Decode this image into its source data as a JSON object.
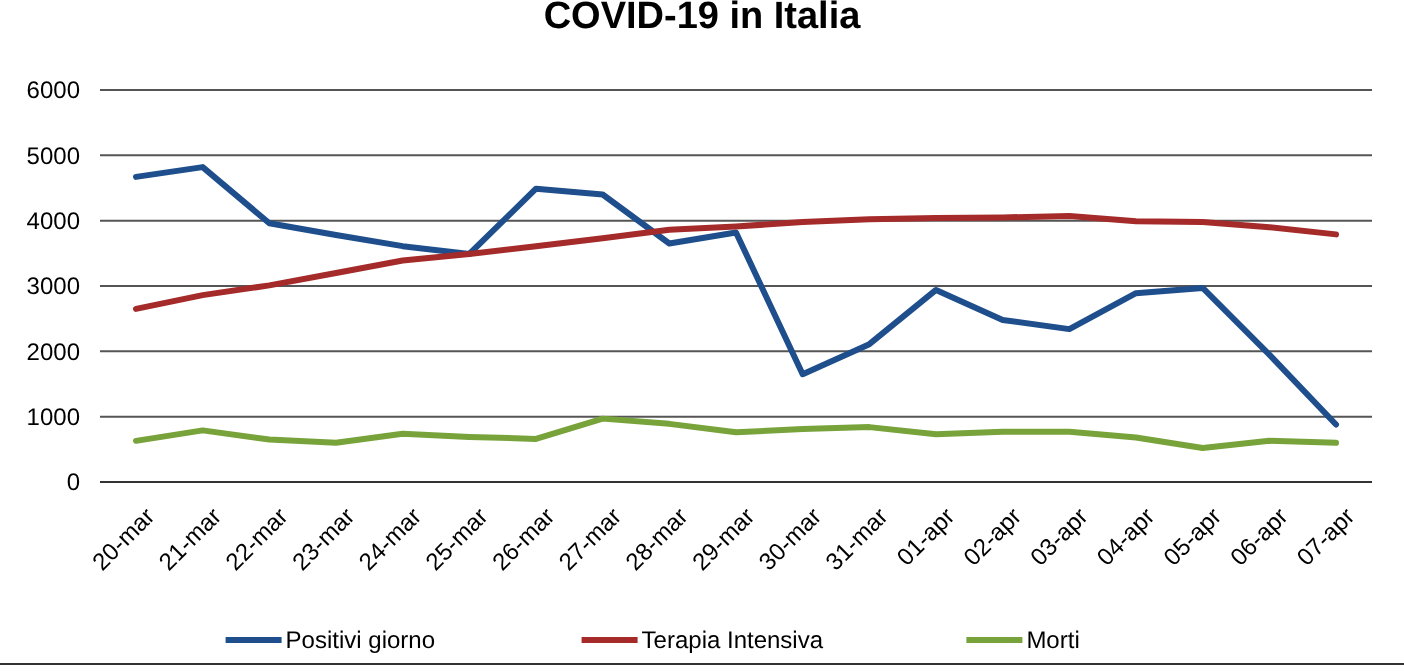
{
  "chart_data": {
    "type": "line",
    "title": "COVID-19 in Italia",
    "categories": [
      "20-mar",
      "21-mar",
      "22-mar",
      "23-mar",
      "24-mar",
      "25-mar",
      "26-mar",
      "27-mar",
      "28-mar",
      "29-mar",
      "30-mar",
      "31-mar",
      "01-apr",
      "02-apr",
      "03-apr",
      "04-apr",
      "05-apr",
      "06-apr",
      "07-apr"
    ],
    "series": [
      {
        "name": "Positivi giorno",
        "color": "#1f4e8c",
        "values": [
          4670,
          4820,
          3960,
          3780,
          3610,
          3490,
          4490,
          4400,
          3650,
          3820,
          1650,
          2110,
          2940,
          2480,
          2340,
          2890,
          2970,
          1950,
          880
        ]
      },
      {
        "name": "Terapia Intensiva",
        "color": "#a52a2a",
        "values": [
          2650,
          2860,
          3010,
          3200,
          3390,
          3490,
          3610,
          3730,
          3860,
          3910,
          3980,
          4020,
          4040,
          4050,
          4070,
          3990,
          3980,
          3900,
          3790
        ]
      },
      {
        "name": "Morti",
        "color": "#77a33a",
        "values": [
          630,
          790,
          650,
          600,
          740,
          690,
          660,
          970,
          890,
          760,
          810,
          840,
          730,
          770,
          770,
          680,
          520,
          630,
          600
        ]
      }
    ],
    "ylim": [
      0,
      6000
    ],
    "yticks": [
      0,
      1000,
      2000,
      3000,
      4000,
      5000,
      6000
    ],
    "grid": "y",
    "legend": "bottom",
    "marker": "none",
    "line_style": "solid"
  }
}
